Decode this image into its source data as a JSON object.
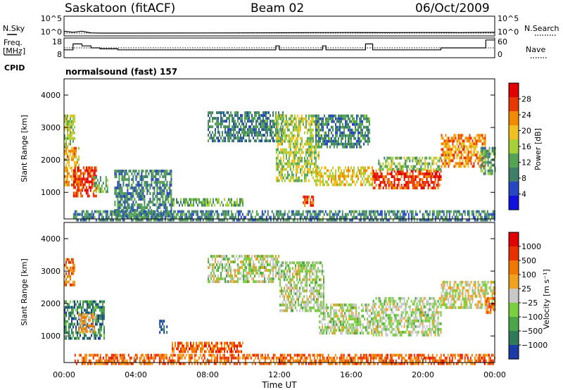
{
  "header": {
    "station": "Saskatoon (fitACF)",
    "beam": "Beam 02",
    "date": "06/Oct/2009"
  },
  "left_labels": {
    "nsky": "N.Sky",
    "freq_top": "Freq.",
    "freq_unit": "[MHz]",
    "cpid": "CPID"
  },
  "right_labels": {
    "nsearch": "N.Search",
    "nave": "Nave"
  },
  "cpid_text": "normalsound (fast) 157",
  "chart_data": [
    {
      "type": "line",
      "name": "noise",
      "yticks_left": [
        "10^5",
        "10^0"
      ],
      "yticks_right": [
        "10^5",
        "10^0"
      ],
      "x": [
        0,
        0.5,
        1,
        1.5,
        2,
        4,
        8,
        12,
        14,
        16,
        18,
        20,
        22,
        24
      ],
      "series": [
        {
          "name": "N.Sky",
          "values": [
            4.5,
            2.0,
            4.8,
            1.2,
            1.0,
            1.0,
            1.1,
            1.3,
            1.5,
            1.6,
            1.4,
            1.6,
            1.5,
            2.0
          ]
        },
        {
          "name": "N.Search",
          "values": [
            0.8,
            0.8,
            0.8,
            0.8,
            0.8,
            0.8,
            0.8,
            0.8,
            0.8,
            0.8,
            0.8,
            0.8,
            0.8,
            0.8
          ]
        }
      ],
      "xlim": [
        0,
        24
      ]
    },
    {
      "type": "line",
      "name": "frequency_nave",
      "yticks_left": [
        "18",
        "8"
      ],
      "yticks_right": [
        "60",
        "0"
      ],
      "x": [
        0,
        0.5,
        1,
        1.5,
        2,
        3,
        4,
        8,
        11.8,
        12,
        14.4,
        14.6,
        16,
        16.8,
        17.2,
        17.5,
        18.5,
        20,
        21,
        22,
        23.5,
        24
      ],
      "series": [
        {
          "name": "Freq",
          "values": [
            12,
            15,
            14,
            13,
            12.5,
            12,
            12,
            12,
            14,
            12,
            14,
            12,
            12,
            15,
            12,
            12,
            12,
            12,
            13,
            13,
            17,
            17
          ]
        },
        {
          "name": "Nave",
          "values": [
            30,
            30,
            30,
            30,
            30,
            30,
            30,
            30,
            30,
            30,
            30,
            30,
            30,
            30,
            30,
            30,
            30,
            30,
            30,
            30,
            30,
            30
          ]
        }
      ],
      "ylim_left": [
        8,
        18
      ],
      "ylim_right": [
        0,
        60
      ]
    },
    {
      "type": "heatmap",
      "name": "power",
      "ylabel": "Slant Range [km]",
      "yticks": [
        1000,
        2000,
        3000,
        4000
      ],
      "ylim": [
        180,
        4500
      ],
      "xlim": [
        0,
        24
      ],
      "colorbar_label": "Power [dB]",
      "colorbar_ticks": [
        "28",
        "24",
        "20",
        "16",
        "12",
        "8",
        "4"
      ],
      "colorbar_colors": [
        "#1010e0",
        "#2747c2",
        "#3f7f6a",
        "#55a455",
        "#a6d038",
        "#f0c020",
        "#f08a00",
        "#e83800",
        "#e00000"
      ],
      "regions": [
        {
          "t0": 0.0,
          "t1": 0.6,
          "r0": 2400,
          "r1": 3400,
          "level": 0.5
        },
        {
          "t0": 0.0,
          "t1": 0.8,
          "r0": 1200,
          "r1": 2400,
          "level": 0.65
        },
        {
          "t0": 0.5,
          "t1": 1.8,
          "r0": 900,
          "r1": 1800,
          "level": 0.85
        },
        {
          "t0": 1.6,
          "t1": 2.4,
          "r0": 1000,
          "r1": 1500,
          "level": 0.4
        },
        {
          "t0": 2.8,
          "t1": 6.0,
          "r0": 300,
          "r1": 1700,
          "level": 0.3
        },
        {
          "t0": 6.0,
          "t1": 10.0,
          "r0": 600,
          "r1": 820,
          "level": 0.4
        },
        {
          "t0": 0.5,
          "t1": 24.0,
          "r0": 180,
          "r1": 450,
          "level": 0.3
        },
        {
          "t0": 8.0,
          "t1": 12.2,
          "r0": 2600,
          "r1": 3500,
          "level": 0.3
        },
        {
          "t0": 11.8,
          "t1": 14.2,
          "r0": 1400,
          "r1": 3400,
          "level": 0.5
        },
        {
          "t0": 13.3,
          "t1": 13.9,
          "r0": 600,
          "r1": 900,
          "level": 0.85
        },
        {
          "t0": 14.0,
          "t1": 17.2,
          "r0": 1200,
          "r1": 1800,
          "level": 0.6
        },
        {
          "t0": 14.0,
          "t1": 17.0,
          "r0": 2400,
          "r1": 3400,
          "level": 0.3
        },
        {
          "t0": 17.2,
          "t1": 21.0,
          "r0": 1100,
          "r1": 1700,
          "level": 0.85
        },
        {
          "t0": 17.5,
          "t1": 21.0,
          "r0": 1700,
          "r1": 2100,
          "level": 0.45
        },
        {
          "t0": 21.0,
          "t1": 23.5,
          "r0": 1800,
          "r1": 2800,
          "level": 0.7
        },
        {
          "t0": 23.2,
          "t1": 24.0,
          "r0": 1600,
          "r1": 2400,
          "level": 0.35
        }
      ]
    },
    {
      "type": "heatmap",
      "name": "velocity",
      "ylabel": "Slant Range [km]",
      "yticks": [
        1000,
        2000,
        3000,
        4000
      ],
      "ylim": [
        180,
        4500
      ],
      "xlim": [
        0,
        24
      ],
      "xticks": [
        "00:00",
        "04:00",
        "08:00",
        "12:00",
        "16:00",
        "20:00",
        "00:00"
      ],
      "xlabel": "Time UT",
      "colorbar_label": "Velocity [m s⁻¹]",
      "colorbar_ticks": [
        "1000",
        "500",
        "100",
        "25",
        "−25",
        "−100",
        "−500",
        "−1000"
      ],
      "colorbar_colors": [
        "#1a3aa8",
        "#2e7a5a",
        "#4aa646",
        "#7ad040",
        "#c8c8c8",
        "#f2a020",
        "#f07800",
        "#e83000",
        "#e00000"
      ],
      "regions": [
        {
          "t0": 0.0,
          "t1": 0.6,
          "r0": 2600,
          "r1": 3400,
          "level": 0.7
        },
        {
          "t0": 0.0,
          "t1": 2.2,
          "r0": 900,
          "r1": 2100,
          "level": 0.2
        },
        {
          "t0": 0.8,
          "t1": 1.8,
          "r0": 1100,
          "r1": 1700,
          "level": 0.62
        },
        {
          "t0": 5.3,
          "t1": 5.7,
          "r0": 1100,
          "r1": 1500,
          "level": 0.05
        },
        {
          "t0": 0.5,
          "t1": 24.0,
          "r0": 180,
          "r1": 450,
          "level": 0.75
        },
        {
          "t0": 6.0,
          "t1": 10.0,
          "r0": 520,
          "r1": 820,
          "level": 0.75
        },
        {
          "t0": 8.0,
          "t1": 12.0,
          "r0": 2700,
          "r1": 3500,
          "level": 0.45
        },
        {
          "t0": 12.0,
          "t1": 14.5,
          "r0": 1800,
          "r1": 3300,
          "level": 0.45
        },
        {
          "t0": 14.2,
          "t1": 17.2,
          "r0": 1100,
          "r1": 2000,
          "level": 0.45
        },
        {
          "t0": 17.2,
          "t1": 21.0,
          "r0": 1000,
          "r1": 2200,
          "level": 0.45
        },
        {
          "t0": 21.0,
          "t1": 24.0,
          "r0": 1900,
          "r1": 2700,
          "level": 0.5
        },
        {
          "t0": 23.5,
          "t1": 24.0,
          "r0": 1700,
          "r1": 2200,
          "level": 0.75
        }
      ]
    }
  ]
}
